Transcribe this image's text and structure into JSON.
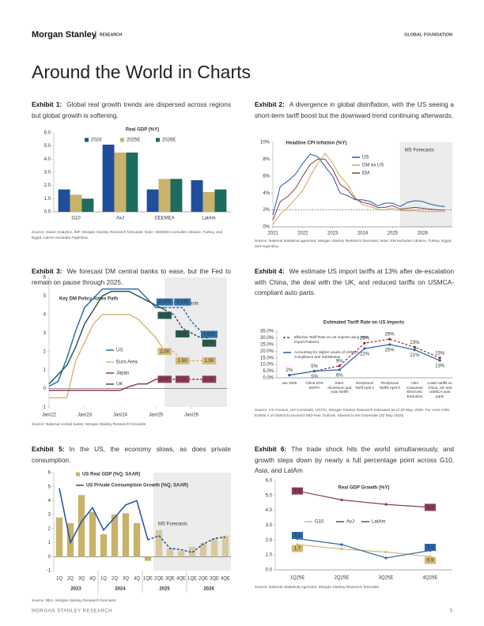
{
  "header": {
    "brand": "Morgan Stanley",
    "section": "RESEARCH",
    "right": "GLOBAL FOUNDATION"
  },
  "title": "Around the World in Charts",
  "exhibits": [
    {
      "label": "Exhibit 1:",
      "caption": "Global real growth trends are dispersed across regions but global growth is softening.",
      "source": "Source: Haver Analytics, IMF, Morgan Stanley Research forecasts; Note: CEEMEA excludes Ukraine, Turkey, and Egypt, LatAm excludes Argentina."
    },
    {
      "label": "Exhibit 2:",
      "caption": "A divergence in global disinflation, with the US seeing a short-term tariff boost but the downward trend continuing afterwards.",
      "source": "Source: National statistical agencies, Morgan Stanley Research forecasts; Note: EM excludes Ukraine, Turkey, Egypt, and Argentina."
    },
    {
      "label": "Exhibit 3:",
      "caption": "We forecast DM central banks to ease, but the Fed to remain on pause through 2025.",
      "source": "Source: National central banks, Morgan Stanley Research forecasts"
    },
    {
      "label": "Exhibit 4:",
      "caption": "We estimate US import tariffs at 13% after de-escalation with China, the deal with the UK, and reduced tariffs on USMCA-compliant auto parts.",
      "source": "Source: US Census, UN Comtrade, USITC, Morgan Stanley Research estimates as of 20 May, 2025. For more refer Exhibit 4 of Global Economics Mid-Year Outlook: Slowed to the Downside (20 May 2025)"
    },
    {
      "label": "Exhibit 5:",
      "caption": "In the US, the economy slows, as does private consumption.",
      "source": "Source: BEA, Morgan Stanley Research forecasts"
    },
    {
      "label": "Exhibit 6:",
      "caption": "The trade shock hits the world simultaneously, and growth steps down by nearly a full percentage point across G10, Asia, and LatAm",
      "source": "Source: National Statistical Agencies, Morgan Stanley Research forecasts"
    }
  ],
  "chart_data": [
    {
      "type": "bar",
      "title": "Real GDP (%Y)",
      "categories": [
        "G10",
        "AxJ",
        "CEEMEA",
        "LatAm"
      ],
      "series": [
        {
          "name": "2024",
          "color": "#1f4f9c",
          "values": [
            1.7,
            5.1,
            1.7,
            2.4
          ]
        },
        {
          "name": "2025E",
          "color": "#c9b36b",
          "values": [
            1.3,
            4.5,
            2.5,
            1.5
          ]
        },
        {
          "name": "2026E",
          "color": "#1e6b5f",
          "values": [
            1.0,
            4.5,
            2.5,
            1.7
          ]
        }
      ],
      "ylim": [
        0,
        6
      ],
      "yticks": [
        {
          "value": 0,
          "label": "0.0"
        },
        {
          "value": 1,
          "label": "1.0"
        },
        {
          "value": 2,
          "label": "2.0"
        },
        {
          "value": 3,
          "label": "3.0"
        },
        {
          "value": 4,
          "label": "4.0"
        },
        {
          "value": 5,
          "label": "5.0"
        },
        {
          "value": 6,
          "label": "6.0"
        }
      ]
    },
    {
      "type": "line",
      "title": "Headline CPI Inflation (%Y)",
      "x": [
        2021,
        2021.25,
        2021.5,
        2021.75,
        2022,
        2022.25,
        2022.5,
        2022.75,
        2023,
        2023.25,
        2023.5,
        2023.75,
        2024,
        2024.25,
        2024.5,
        2024.75,
        2025,
        2025.25,
        2025.5,
        2025.75,
        2026,
        2026.25,
        2026.5,
        2026.75
      ],
      "xlim": [
        2021,
        2027
      ],
      "xticks": [
        2021,
        2022,
        2023,
        2024,
        2025,
        2026
      ],
      "series": [
        {
          "name": "US",
          "color": "#2158a8",
          "values": [
            1.4,
            4.8,
            5.4,
            6.2,
            7.5,
            8.6,
            8.3,
            7.1,
            6.0,
            4.0,
            3.7,
            3.2,
            3.2,
            3.0,
            2.5,
            2.8,
            2.8,
            2.4,
            2.9,
            3.1,
            3.0,
            2.7,
            2.5,
            2.4
          ]
        },
        {
          "name": "DM ex US",
          "color": "#c9a85a",
          "values": [
            0.3,
            1.5,
            2.3,
            3.3,
            4.3,
            6.0,
            7.5,
            8.7,
            7.5,
            6.0,
            5.0,
            3.5,
            2.6,
            2.4,
            2.1,
            2.0,
            2.2,
            1.9,
            1.9,
            1.9,
            1.8,
            1.8,
            1.8,
            1.8
          ]
        },
        {
          "name": "EM",
          "color": "#8b3a52",
          "values": [
            0.8,
            3.0,
            3.6,
            4.5,
            6.0,
            7.4,
            8.0,
            8.0,
            6.8,
            5.0,
            4.4,
            3.3,
            2.9,
            2.7,
            2.3,
            2.3,
            2.5,
            2.1,
            2.2,
            2.3,
            2.2,
            2.1,
            2.0,
            2.0
          ]
        }
      ],
      "ylim": [
        0,
        10
      ],
      "yticks": [
        {
          "value": 0,
          "label": "0%"
        },
        {
          "value": 2,
          "label": "2%"
        },
        {
          "value": 4,
          "label": "4%"
        },
        {
          "value": 6,
          "label": "6%"
        },
        {
          "value": 8,
          "label": "8%"
        },
        {
          "value": 10,
          "label": "10%"
        }
      ],
      "reference_line": 2,
      "forecast_start": 2025.25,
      "annotation": "MS Forecasts"
    },
    {
      "type": "line",
      "title": "Key DM Policy Rates Path",
      "x": [
        2022,
        2022.25,
        2022.5,
        2022.75,
        2023,
        2023.25,
        2023.5,
        2023.75,
        2024,
        2024.25,
        2024.5,
        2024.75,
        2025,
        2025.25,
        2025.5,
        2025.75,
        2026,
        2026.25,
        2026.5
      ],
      "xlim": [
        2022,
        2027
      ],
      "xticks": [
        {
          "value": 2022,
          "label": "Jan/22"
        },
        {
          "value": 2023,
          "label": "Jan/23"
        },
        {
          "value": 2024,
          "label": "Jan/24"
        },
        {
          "value": 2025,
          "label": "Jan/25"
        },
        {
          "value": 2026,
          "label": "Jan/26"
        }
      ],
      "series": [
        {
          "name": "US",
          "color": "#2e6fad",
          "values": [
            0.125,
            0.375,
            1.625,
            3.125,
            4.375,
            4.875,
            5.375,
            5.375,
            5.375,
            5.375,
            5.375,
            4.875,
            4.375,
            4.375,
            4.375,
            4.375,
            3.625,
            3.125,
            2.625
          ],
          "value_labels": [
            null,
            null,
            null,
            null,
            null,
            null,
            null,
            null,
            null,
            null,
            null,
            null,
            null,
            "4.375",
            null,
            "4.375",
            null,
            null,
            "2.625"
          ]
        },
        {
          "name": "Euro Area",
          "color": "#d4b97a",
          "values": [
            -0.5,
            -0.5,
            -0.5,
            1.5,
            2.5,
            3.5,
            4,
            4,
            4,
            4,
            3.75,
            3.25,
            2.75,
            2.0,
            2.0,
            1.5,
            1.5,
            1.5,
            1.5
          ],
          "value_labels": [
            null,
            null,
            null,
            null,
            null,
            null,
            null,
            null,
            null,
            null,
            null,
            null,
            null,
            "2.00",
            null,
            "1.50",
            null,
            null,
            "1.50"
          ]
        },
        {
          "name": "Japan",
          "color": "#8f3b54",
          "values": [
            -0.1,
            -0.1,
            -0.1,
            -0.1,
            -0.1,
            -0.1,
            -0.1,
            -0.1,
            -0.1,
            0.1,
            0.25,
            0.25,
            0.5,
            0.5,
            0.5,
            0.5,
            0.5,
            0.5,
            0.5
          ],
          "value_labels": [
            null,
            null,
            null,
            null,
            null,
            null,
            null,
            null,
            null,
            null,
            null,
            null,
            null,
            "0.50",
            null,
            "0.50",
            null,
            null,
            "0.50"
          ]
        },
        {
          "name": "UK",
          "color": "#2a5a4f",
          "values": [
            0.25,
            0.75,
            1.25,
            2.25,
            3.5,
            4.25,
            5.0,
            5.25,
            5.25,
            5.25,
            5.0,
            4.75,
            4.5,
            4.25,
            4.0,
            3.25,
            3.0,
            2.75,
            2.75
          ],
          "value_labels": [
            null,
            null,
            null,
            null,
            null,
            null,
            null,
            null,
            null,
            null,
            null,
            null,
            null,
            "4.25",
            null,
            "3.25",
            null,
            null,
            "2.75"
          ]
        }
      ],
      "ylim": [
        -1,
        6
      ],
      "yticks": [
        -1,
        0,
        1,
        2,
        3,
        4,
        5,
        6
      ],
      "forecast_start": 2025.25,
      "forecast_dashed": true,
      "annotation": "MS Forecasts",
      "label_style": "box"
    },
    {
      "type": "line",
      "title": "Estimated Tariff Rate on US Imports",
      "categories": [
        "Jan 2025",
        "China 20% IEEPA",
        "Steel, Aluminium and Auto Tariffs",
        "Reciprocal Tariff April 2",
        "Reciprocal Tariffs April 9",
        "After Consumer Electronic Exclusion",
        "Lower tariffs on China, UK and USMCA auto parts"
      ],
      "series": [
        {
          "name": "Effective Tariff Rate on US imports using 2024 Import Patterns",
          "color": "#9b2d3c",
          "style": "dashed",
          "values": [
            2,
            5,
            9,
            26,
            29,
            23,
            15
          ],
          "value_labels": [
            "2%",
            "5%",
            "9%",
            "26%",
            "29%",
            "23%",
            "15%"
          ]
        },
        {
          "name": "Accounting for Higher Levels of USMCA Compliance and Substitution",
          "color": "#2b5fa6",
          "values": [
            2,
            5,
            6,
            22,
            25,
            21,
            13
          ],
          "value_labels": [
            null,
            "5%",
            "6%",
            "22%",
            "25%",
            "21%",
            "13%"
          ]
        }
      ],
      "ylim": [
        0,
        35
      ],
      "yticks": [
        {
          "value": 0,
          "label": "0.0%"
        },
        {
          "value": 5,
          "label": "5.0%"
        },
        {
          "value": 10,
          "label": "10.0%"
        },
        {
          "value": 15,
          "label": "15.0%"
        },
        {
          "value": 20,
          "label": "20.0%"
        },
        {
          "value": 25,
          "label": "25.0%"
        },
        {
          "value": 30,
          "label": "30.0%"
        },
        {
          "value": 35,
          "label": "35.0%"
        }
      ],
      "label_style": "text"
    },
    {
      "type": "combo",
      "categories": [
        "1Q",
        "2Q",
        "3Q",
        "4Q",
        "1Q",
        "2Q",
        "3Q",
        "4Q",
        "1QE",
        "2QE",
        "3QE",
        "4QE",
        "1QE",
        "2QE",
        "3QE",
        "4QE"
      ],
      "year_labels": [
        "2023",
        "2024",
        "2025",
        "2026"
      ],
      "series": [
        {
          "name": "US Real GDP (%Q, SAAR)",
          "kind": "bar",
          "color": "#c9b26a",
          "values": [
            2.8,
            2.4,
            4.4,
            3.2,
            1.6,
            3.0,
            3.1,
            2.4,
            -0.3,
            1.9,
            0.6,
            0.4,
            0.7,
            1.0,
            1.3,
            1.5
          ]
        },
        {
          "name": "US Private Consumption Growth (%Q, SAAR)",
          "kind": "line",
          "color": "#1f4fa0",
          "values": [
            4.9,
            1.0,
            2.5,
            3.5,
            1.9,
            2.8,
            3.7,
            4.0,
            1.2,
            1.5,
            0.6,
            0.5,
            0.3,
            0.9,
            1.3,
            1.4
          ]
        }
      ],
      "ylim": [
        -1,
        6
      ],
      "yticks": [
        -1,
        0,
        1,
        2,
        3,
        4,
        5,
        6
      ],
      "forecast_start": 9,
      "forecast_dashed": true,
      "annotation": "MS Forecasts"
    },
    {
      "type": "line",
      "title": "Real GDP Growth (%Y)",
      "categories": [
        "1Q25E",
        "2Q25E",
        "3Q25E",
        "4Q25E"
      ],
      "series": [
        {
          "name": "G10",
          "color": "#d2bb72",
          "values": [
            1.7,
            1.4,
            1.2,
            0.9
          ],
          "value_labels": [
            "1.7",
            null,
            null,
            "0.9"
          ]
        },
        {
          "name": "AxJ",
          "color": "#8b3a52",
          "values": [
            5.3,
            4.7,
            4.4,
            4.2
          ],
          "value_labels": [
            "5.3",
            null,
            null,
            "4.2"
          ]
        },
        {
          "name": "LatAm",
          "color": "#2b66a8",
          "values": [
            2.1,
            1.7,
            0.8,
            1.3
          ],
          "value_labels": [
            "2.1",
            null,
            null,
            "1.3"
          ]
        }
      ],
      "ylim": [
        0,
        6
      ],
      "yticks": [
        {
          "value": 0,
          "label": "0.0"
        },
        {
          "value": 1,
          "label": "1.0"
        },
        {
          "value": 2,
          "label": "2.0"
        },
        {
          "value": 3,
          "label": "3.0"
        },
        {
          "value": 4,
          "label": "4.0"
        },
        {
          "value": 5,
          "label": "5.0"
        },
        {
          "value": 6,
          "label": "6.0"
        }
      ],
      "label_style": "box"
    }
  ],
  "footer": {
    "text": "MORGAN STANLEY RESEARCH",
    "page": "5"
  }
}
